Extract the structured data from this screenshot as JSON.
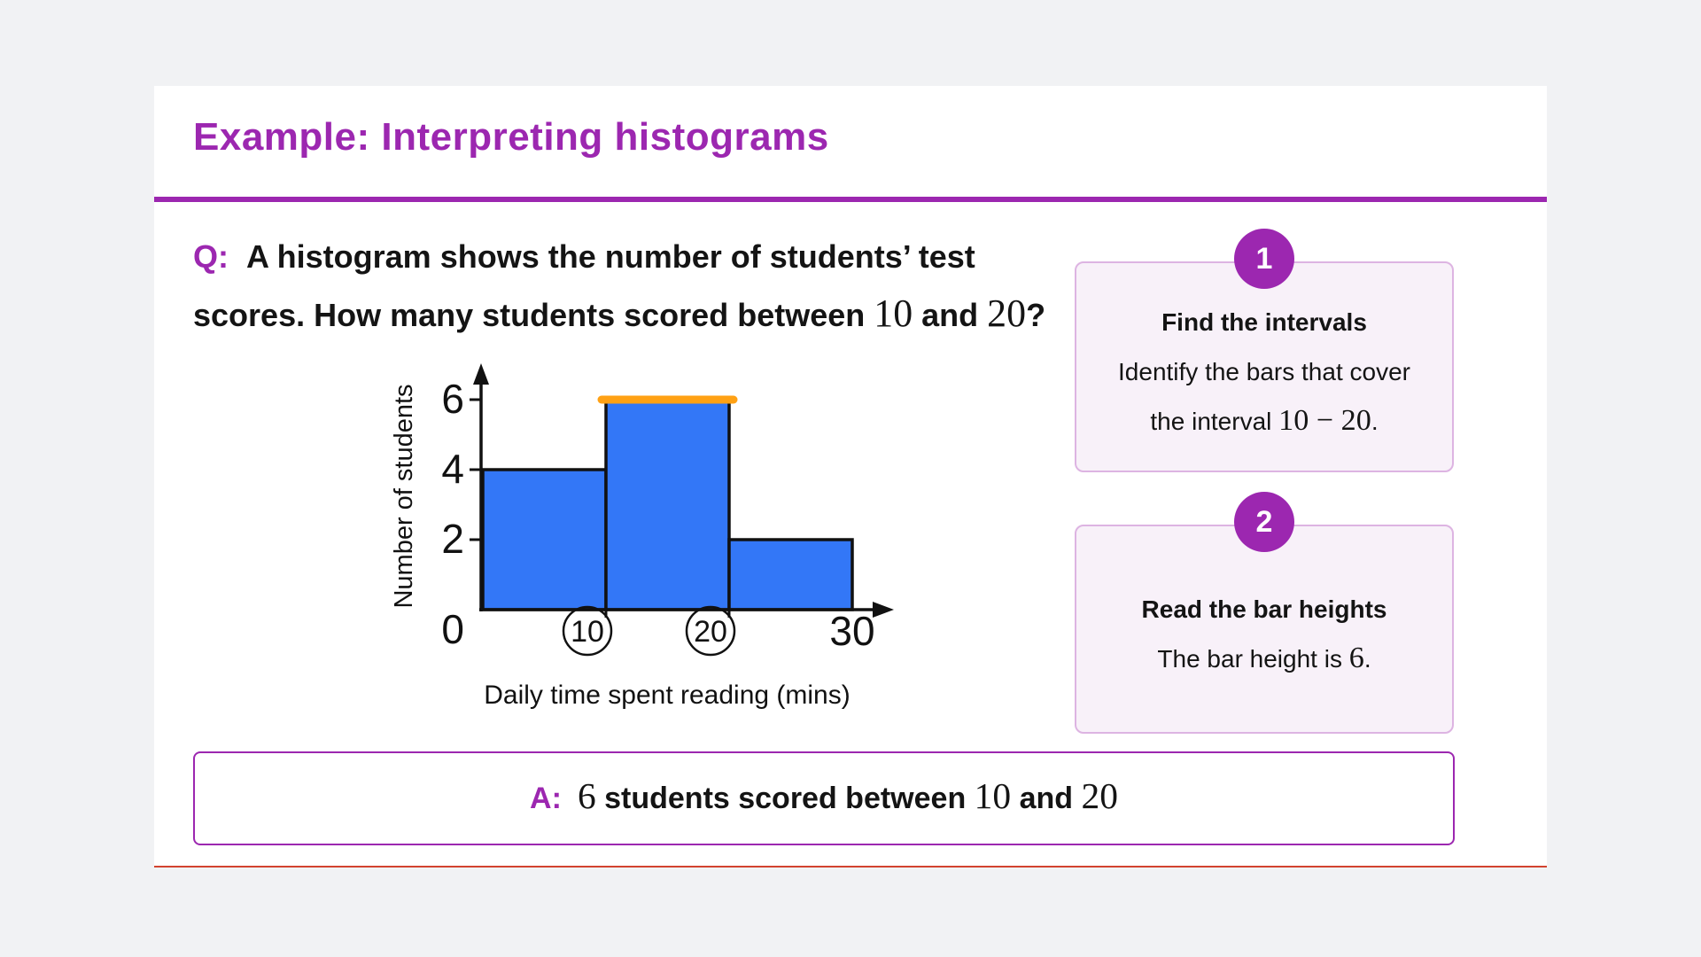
{
  "header": {
    "title": "Example: Interpreting histograms"
  },
  "question": {
    "label": "Q:",
    "line1": [
      {
        "t": "A histogram shows the number of students’ test"
      }
    ],
    "line2": [
      {
        "t": "scores. How many students scored between "
      },
      {
        "t": "10",
        "f": "serif"
      },
      {
        "t": " and "
      },
      {
        "t": "20",
        "f": "serif"
      },
      {
        "t": "?"
      }
    ]
  },
  "chart_data": {
    "type": "histogram",
    "title": "",
    "xlabel": "Daily time spent reading (mins)",
    "ylabel": "Number of students",
    "xlim": [
      0,
      30
    ],
    "ylim": [
      0,
      7
    ],
    "grid": false,
    "y_ticks": [
      2,
      4,
      6
    ],
    "origin_label": "0",
    "x_ticks": [
      {
        "value": 10,
        "circled": true
      },
      {
        "value": 20,
        "circled": true
      },
      {
        "value": 30,
        "circled": false
      }
    ],
    "bins": [
      {
        "from": 0,
        "to": 10,
        "count": 4
      },
      {
        "from": 10,
        "to": 20,
        "count": 6,
        "highlight": true
      },
      {
        "from": 20,
        "to": 30,
        "count": 2
      }
    ],
    "bar_color": "#3377F7",
    "highlight_color": "#FFA114"
  },
  "steps": [
    {
      "number": "1",
      "title": "Find the intervals",
      "lines": [
        [
          {
            "t": "Identify the bars that cover"
          }
        ],
        [
          {
            "t": "the interval "
          },
          {
            "t": "10",
            "f": "serif"
          },
          {
            "t": " − ",
            "f": "serif"
          },
          {
            "t": "20",
            "f": "serif"
          },
          {
            "t": "."
          }
        ]
      ]
    },
    {
      "number": "2",
      "title": "Read the bar heights",
      "lines": [
        [
          {
            "t": "The bar height is "
          },
          {
            "t": "6",
            "f": "serif"
          },
          {
            "t": "."
          }
        ]
      ]
    }
  ],
  "answer": {
    "label": "A:",
    "text": [
      {
        "t": "6",
        "f": "serif"
      },
      {
        "t": " students scored between "
      },
      {
        "t": "10",
        "f": "serif"
      },
      {
        "t": " and "
      },
      {
        "t": "20",
        "f": "serif"
      }
    ]
  },
  "colors": {
    "brand": "#9C27B0",
    "page_bg": "#F1F2F4",
    "card_bg": "#FFFFFF",
    "panel_bg": "#F8F1F9",
    "panel_border": "#DDB4E2",
    "bottom_line": "#D2432F",
    "text": "#141414",
    "bar": "#3377F7",
    "highlight": "#FFA114"
  }
}
